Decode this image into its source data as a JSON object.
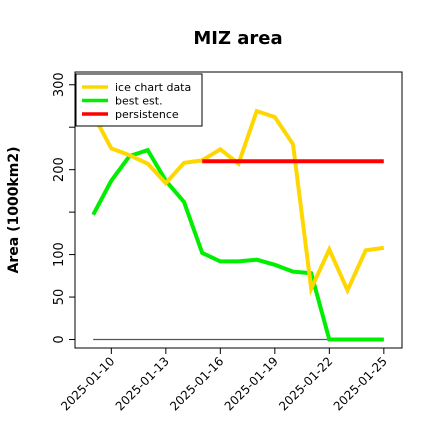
{
  "chart_data": {
    "type": "line",
    "title": "MIZ area",
    "xlabel": "",
    "ylabel": "Area (1000km2)",
    "x_dates": [
      "2025-01-09",
      "2025-01-10",
      "2025-01-11",
      "2025-01-12",
      "2025-01-13",
      "2025-01-14",
      "2025-01-15",
      "2025-01-16",
      "2025-01-17",
      "2025-01-18",
      "2025-01-19",
      "2025-01-20",
      "2025-01-21",
      "2025-01-22",
      "2025-01-23",
      "2025-01-24",
      "2025-01-25"
    ],
    "xticks": [
      "2025-01-10",
      "2025-01-13",
      "2025-01-16",
      "2025-01-19",
      "2025-01-22",
      "2025-01-25"
    ],
    "yticks": [
      0,
      50,
      100,
      150,
      200,
      250,
      300
    ],
    "ytick_labels": [
      "0",
      "50",
      "100",
      "",
      "200",
      "",
      "300"
    ],
    "xlim": [
      "2025-01-08",
      "2025-01-26"
    ],
    "ylim": [
      -10,
      315
    ],
    "legend_position": "upper-left",
    "baseline": {
      "color": "#555555",
      "x": [
        "2025-01-09",
        "2025-01-25"
      ],
      "y": [
        0,
        0
      ]
    },
    "series": [
      {
        "name": "ice chart data",
        "color": "#FFD700",
        "x": [
          "2025-01-09",
          "2025-01-10",
          "2025-01-11",
          "2025-01-12",
          "2025-01-13",
          "2025-01-14",
          "2025-01-15",
          "2025-01-16",
          "2025-01-17",
          "2025-01-18",
          "2025-01-19",
          "2025-01-20",
          "2025-01-21",
          "2025-01-22",
          "2025-01-23",
          "2025-01-24",
          "2025-01-25"
        ],
        "y": [
          265,
          225,
          217,
          207,
          184,
          208,
          211,
          224,
          207,
          269,
          262,
          230,
          60,
          106,
          58,
          105,
          108
        ]
      },
      {
        "name": "best est.",
        "color": "#00EE00",
        "x": [
          "2025-01-09",
          "2025-01-10",
          "2025-01-11",
          "2025-01-12",
          "2025-01-13",
          "2025-01-14",
          "2025-01-15",
          "2025-01-16",
          "2025-01-17",
          "2025-01-18",
          "2025-01-19",
          "2025-01-20",
          "2025-01-21",
          "2025-01-22",
          "2025-01-23",
          "2025-01-24",
          "2025-01-25"
        ],
        "y": [
          147,
          187,
          216,
          223,
          187,
          162,
          102,
          92,
          92,
          94,
          88,
          80,
          78,
          0,
          0,
          0,
          0
        ]
      },
      {
        "name": "persistence",
        "color": "#FF0000",
        "x": [
          "2025-01-15",
          "2025-01-25"
        ],
        "y": [
          210,
          210
        ]
      }
    ]
  }
}
